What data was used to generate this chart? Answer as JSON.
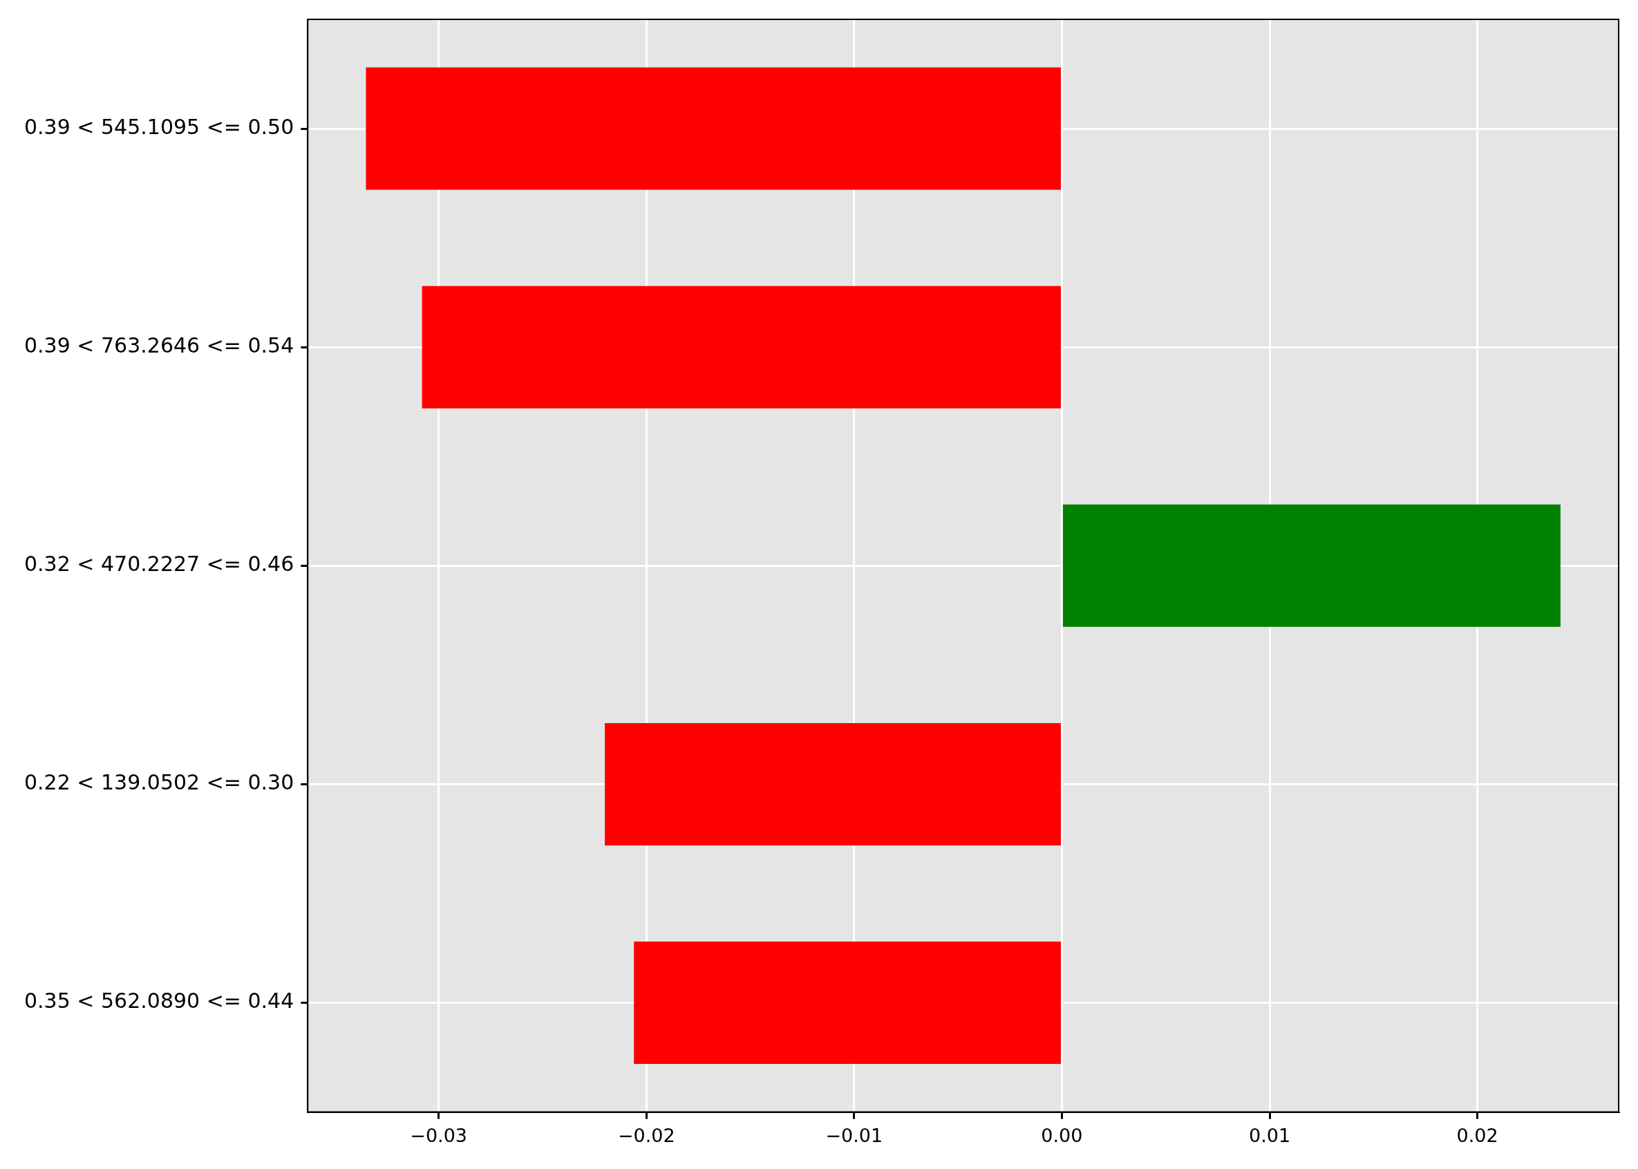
{
  "chart_data": {
    "type": "bar",
    "orientation": "horizontal",
    "categories": [
      "0.39 < 545.1095 <= 0.50",
      "0.39 < 763.2646 <= 0.54",
      "0.32 < 470.2227 <= 0.46",
      "0.22 < 139.0502 <= 0.30",
      "0.35 < 562.0890 <= 0.44"
    ],
    "values": [
      -0.0335,
      -0.0308,
      0.024,
      -0.022,
      -0.0206
    ],
    "colors": [
      "#ff0000",
      "#ff0000",
      "#008000",
      "#ff0000",
      "#ff0000"
    ],
    "xlim": [
      -0.0363,
      0.0268
    ],
    "xticks": [
      {
        "value": -0.03,
        "label": "−0.03"
      },
      {
        "value": -0.02,
        "label": "−0.02"
      },
      {
        "value": -0.01,
        "label": "−0.01"
      },
      {
        "value": 0,
        "label": "0.00"
      },
      {
        "value": 0.01,
        "label": "0.01"
      },
      {
        "value": 0.02,
        "label": "0.02"
      }
    ],
    "grid": true,
    "legend": false
  }
}
